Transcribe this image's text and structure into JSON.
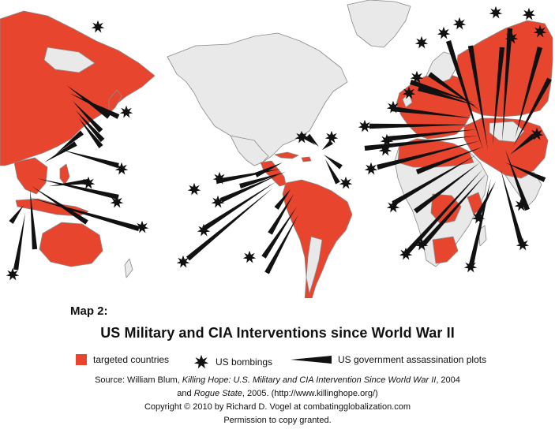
{
  "map": {
    "colors": {
      "targeted_country": "#e8452f",
      "other_country": "#e9e9e9",
      "border": "#8a8a8a",
      "ocean": "#ffffff",
      "marker": "#111111"
    },
    "icons": {
      "bombing": "black-starburst-icon",
      "assassination": "black-wedge-line-icon"
    }
  },
  "caption": {
    "map_number": "Map 2:",
    "title": "US Military and CIA Interventions since World War II"
  },
  "legend": {
    "targeted": "targeted countries",
    "bombings": "US bombings",
    "assassinations": "US government assassination plots"
  },
  "source": {
    "line1_prefix": "Source:  William Blum, ",
    "line1_book": "Killing Hope: U.S. Military and CIA Intervention Since World War II",
    "line1_suffix": ", 2004",
    "line2_prefix": "and ",
    "line2_book": "Rogue State",
    "line2_suffix": ", 2005. (http://www.killinghope.org/)",
    "copyright": "Copyright  ©  2010 by Richard D. Vogel at combatingglobalization.com",
    "permission": "Permission to copy granted."
  }
}
